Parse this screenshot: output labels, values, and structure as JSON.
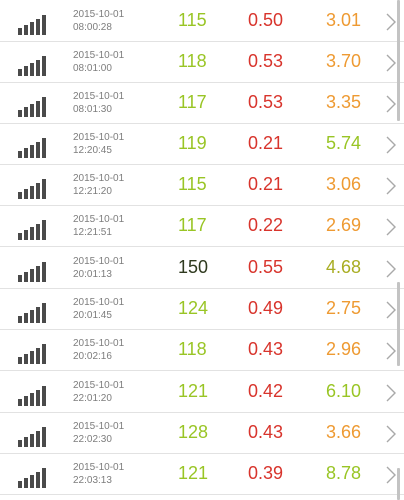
{
  "colors": {
    "green": "#99c525",
    "red": "#d8342c",
    "orange": "#ee9a32",
    "olive": "#a8ad22",
    "dark": "#2f3a1f",
    "timestamp": "#7d7d7d",
    "icon": "#4a4a4a",
    "divider": "#e2e2e2"
  },
  "rows": [
    {
      "date": "2015-10-01",
      "time": "08:00:28",
      "v1": "115",
      "v1_color": "green",
      "v2": "0.50",
      "v2_color": "red",
      "v3": "3.01",
      "v3_color": "orange"
    },
    {
      "date": "2015-10-01",
      "time": "08:01:00",
      "v1": "118",
      "v1_color": "green",
      "v2": "0.53",
      "v2_color": "red",
      "v3": "3.70",
      "v3_color": "orange"
    },
    {
      "date": "2015-10-01",
      "time": "08:01:30",
      "v1": "117",
      "v1_color": "green",
      "v2": "0.53",
      "v2_color": "red",
      "v3": "3.35",
      "v3_color": "orange"
    },
    {
      "date": "2015-10-01",
      "time": "12:20:45",
      "v1": "119",
      "v1_color": "green",
      "v2": "0.21",
      "v2_color": "red",
      "v3": "5.74",
      "v3_color": "green"
    },
    {
      "date": "2015-10-01",
      "time": "12:21:20",
      "v1": "115",
      "v1_color": "green",
      "v2": "0.21",
      "v2_color": "red",
      "v3": "3.06",
      "v3_color": "orange"
    },
    {
      "date": "2015-10-01",
      "time": "12:21:51",
      "v1": "117",
      "v1_color": "green",
      "v2": "0.22",
      "v2_color": "red",
      "v3": "2.69",
      "v3_color": "orange"
    },
    {
      "date": "2015-10-01",
      "time": "20:01:13",
      "v1": "150",
      "v1_color": "dark",
      "v2": "0.55",
      "v2_color": "red",
      "v3": "4.68",
      "v3_color": "olive"
    },
    {
      "date": "2015-10-01",
      "time": "20:01:45",
      "v1": "124",
      "v1_color": "green",
      "v2": "0.49",
      "v2_color": "red",
      "v3": "2.75",
      "v3_color": "orange"
    },
    {
      "date": "2015-10-01",
      "time": "20:02:16",
      "v1": "118",
      "v1_color": "green",
      "v2": "0.43",
      "v2_color": "red",
      "v3": "2.96",
      "v3_color": "orange"
    },
    {
      "date": "2015-10-01",
      "time": "22:01:20",
      "v1": "121",
      "v1_color": "green",
      "v2": "0.42",
      "v2_color": "red",
      "v3": "6.10",
      "v3_color": "green"
    },
    {
      "date": "2015-10-01",
      "time": "22:02:30",
      "v1": "128",
      "v1_color": "green",
      "v2": "0.43",
      "v2_color": "red",
      "v3": "3.66",
      "v3_color": "orange"
    },
    {
      "date": "2015-10-01",
      "time": "22:03:13",
      "v1": "121",
      "v1_color": "green",
      "v2": "0.39",
      "v2_color": "red",
      "v3": "8.78",
      "v3_color": "green"
    }
  ],
  "icons": {
    "row_icon": "signal-strength-icon",
    "row_action": "chevron-right-icon"
  }
}
